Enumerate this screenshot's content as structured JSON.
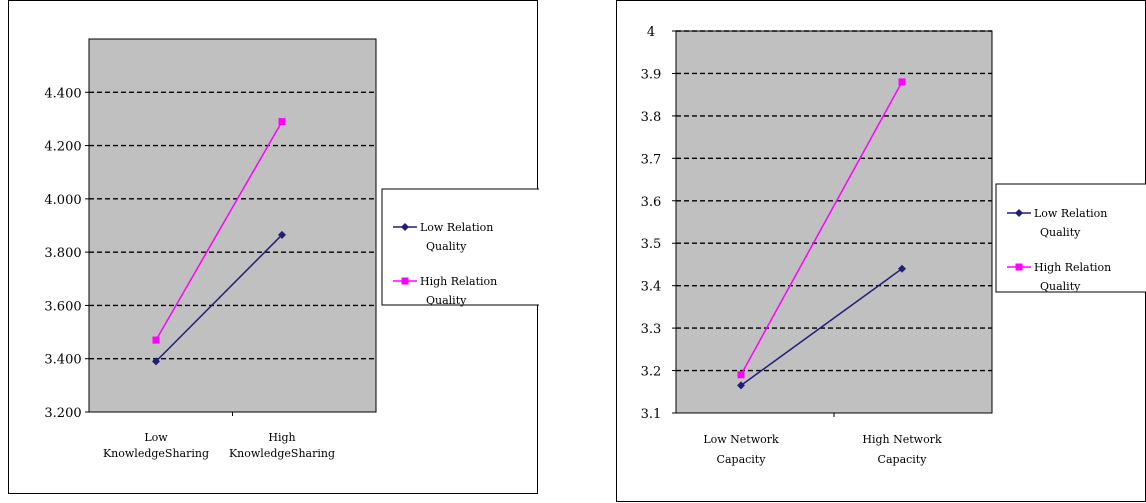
{
  "chart_data": [
    {
      "type": "line",
      "categories": [
        [
          "Low",
          "KnowledgeSharing"
        ],
        [
          "High",
          "KnowledgeSharing"
        ]
      ],
      "series": [
        {
          "name": [
            "Low Relation",
            "Quality"
          ],
          "values": [
            3.39,
            3.865
          ],
          "color": "#1f1f7a",
          "marker": "diamond"
        },
        {
          "name": [
            "High Relation",
            "Quality"
          ],
          "values": [
            3.47,
            4.29
          ],
          "color": "#ff00ff",
          "marker": "square"
        }
      ],
      "yticks": [
        "3.200",
        "3.400",
        "3.600",
        "3.800",
        "4.000",
        "4.200",
        "4.400"
      ],
      "ylim": [
        3.2,
        4.6
      ],
      "grid": true,
      "plot_background": "#c0c0c0",
      "legend_position": "right"
    },
    {
      "type": "line",
      "categories": [
        [
          "Low Network",
          "Capacity"
        ],
        [
          "High Network",
          "Capacity"
        ]
      ],
      "series": [
        {
          "name": [
            "Low Relation",
            "Quality"
          ],
          "values": [
            3.165,
            3.44
          ],
          "color": "#1f1f7a",
          "marker": "diamond"
        },
        {
          "name": [
            "High Relation",
            "Quality"
          ],
          "values": [
            3.19,
            3.88
          ],
          "color": "#ff00ff",
          "marker": "square"
        }
      ],
      "yticks": [
        "3.1",
        "3.2",
        "3.3",
        "3.4",
        "3.5",
        "3.6",
        "3.7",
        "3.8",
        "3.9",
        "4"
      ],
      "ylim": [
        3.1,
        4.0
      ],
      "grid": true,
      "plot_background": "#c0c0c0",
      "legend_position": "right"
    }
  ]
}
